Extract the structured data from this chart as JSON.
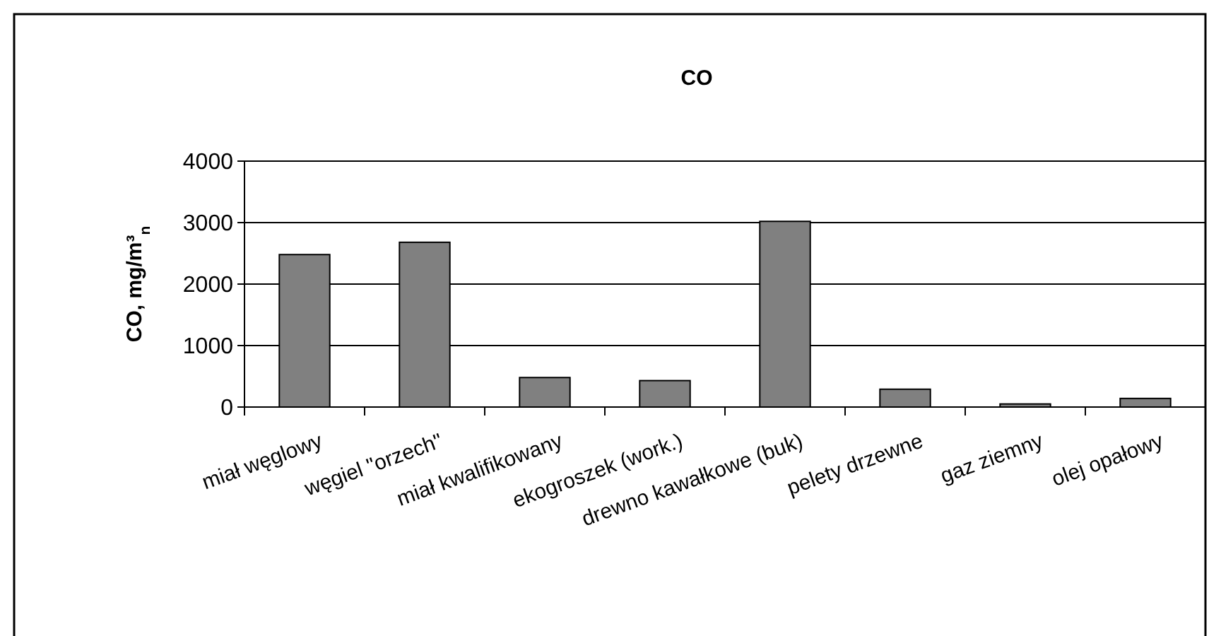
{
  "chart_data": {
    "type": "bar",
    "title": "CO",
    "ylabel": "CO, mg/m³$_{n}$",
    "categories": [
      "miał węglowy",
      "węgiel \"orzech\"",
      "miał kwalifikowany",
      "ekogroszek (work.)",
      "drewno kawałkowe (buk)",
      "pelety drzewne",
      "gaz ziemny",
      "olej opałowy"
    ],
    "values": [
      2480,
      2680,
      480,
      430,
      3020,
      290,
      50,
      140
    ],
    "color": "#808080",
    "ylim": [
      0,
      4000
    ],
    "yticks": [
      0,
      1000,
      2000,
      3000,
      4000
    ],
    "grid": "y"
  }
}
